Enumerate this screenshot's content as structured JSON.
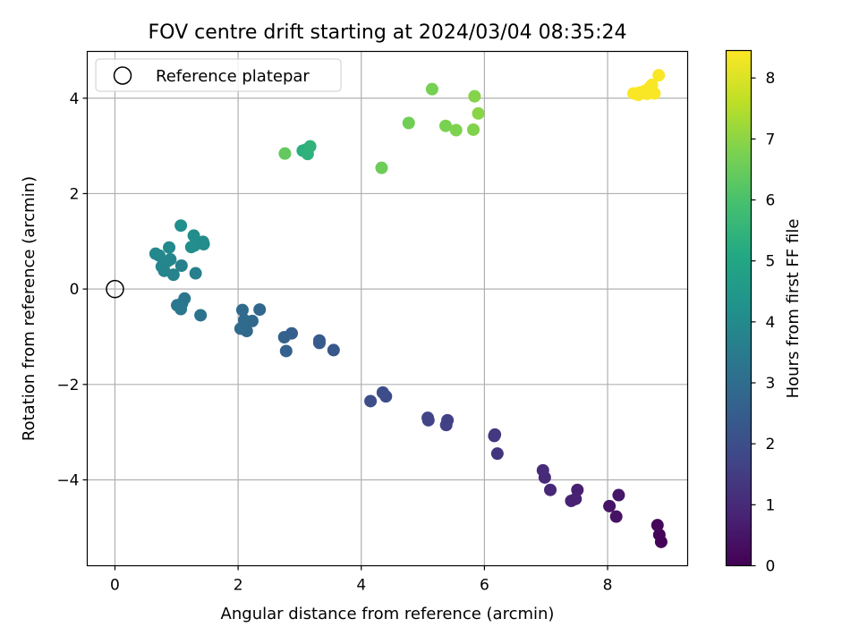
{
  "chart_data": {
    "type": "scatter",
    "title": "FOV centre drift starting at 2024/03/04 08:35:24",
    "xlabel": "Angular distance from reference (arcmin)",
    "ylabel": "Rotation from reference (arcmin)",
    "colorbar_label": "Hours from first FF file",
    "xlim": [
      -0.45,
      9.3
    ],
    "ylim": [
      -5.8,
      4.98
    ],
    "xticks": [
      0,
      2,
      4,
      6,
      8
    ],
    "yticks": [
      -4,
      -2,
      0,
      2,
      4
    ],
    "xtick_labels": [
      "0",
      "2",
      "4",
      "6",
      "8"
    ],
    "ytick_labels": [
      "−4",
      "−2",
      "0",
      "2",
      "4"
    ],
    "colorbar_range": [
      0,
      8.45
    ],
    "colorbar_ticks": [
      0,
      1,
      2,
      3,
      4,
      5,
      6,
      7,
      8
    ],
    "colorbar_tick_labels": [
      "0",
      "1",
      "2",
      "3",
      "4",
      "5",
      "6",
      "7",
      "8"
    ],
    "colormap": "viridis",
    "grid": true,
    "legend": {
      "placement": "top-left",
      "entries": [
        "Reference platepar"
      ]
    },
    "reference_point": {
      "name": "Reference platepar",
      "x": 0,
      "y": 0
    },
    "points": [
      {
        "x": 8.87,
        "y": -5.3,
        "t": 0.05
      },
      {
        "x": 8.84,
        "y": -5.15,
        "t": 0.1
      },
      {
        "x": 8.81,
        "y": -4.95,
        "t": 0.15
      },
      {
        "x": 8.14,
        "y": -4.77,
        "t": 0.4
      },
      {
        "x": 8.03,
        "y": -4.55,
        "t": 0.45
      },
      {
        "x": 8.18,
        "y": -4.32,
        "t": 0.5
      },
      {
        "x": 7.51,
        "y": -4.21,
        "t": 0.75
      },
      {
        "x": 7.48,
        "y": -4.4,
        "t": 0.8
      },
      {
        "x": 7.41,
        "y": -4.44,
        "t": 0.82
      },
      {
        "x": 7.07,
        "y": -4.21,
        "t": 0.95
      },
      {
        "x": 6.98,
        "y": -3.95,
        "t": 1.0
      },
      {
        "x": 6.95,
        "y": -3.8,
        "t": 1.05
      },
      {
        "x": 6.21,
        "y": -3.45,
        "t": 1.3
      },
      {
        "x": 6.17,
        "y": -3.05,
        "t": 1.35
      },
      {
        "x": 6.16,
        "y": -3.08,
        "t": 1.37
      },
      {
        "x": 5.4,
        "y": -2.75,
        "t": 1.6
      },
      {
        "x": 5.38,
        "y": -2.85,
        "t": 1.62
      },
      {
        "x": 5.09,
        "y": -2.75,
        "t": 1.7
      },
      {
        "x": 5.08,
        "y": -2.7,
        "t": 1.72
      },
      {
        "x": 4.4,
        "y": -2.25,
        "t": 1.95
      },
      {
        "x": 4.35,
        "y": -2.17,
        "t": 1.97
      },
      {
        "x": 4.15,
        "y": -2.35,
        "t": 2.0
      },
      {
        "x": 3.55,
        "y": -1.28,
        "t": 2.3
      },
      {
        "x": 3.32,
        "y": -1.08,
        "t": 2.4
      },
      {
        "x": 3.32,
        "y": -1.13,
        "t": 2.42
      },
      {
        "x": 2.87,
        "y": -0.93,
        "t": 2.55
      },
      {
        "x": 2.78,
        "y": -1.3,
        "t": 2.6
      },
      {
        "x": 2.75,
        "y": -1.01,
        "t": 2.62
      },
      {
        "x": 2.35,
        "y": -0.43,
        "t": 2.8
      },
      {
        "x": 2.23,
        "y": -0.67,
        "t": 2.85
      },
      {
        "x": 2.14,
        "y": -0.88,
        "t": 2.88
      },
      {
        "x": 2.1,
        "y": -0.65,
        "t": 2.9
      },
      {
        "x": 2.07,
        "y": -0.44,
        "t": 2.92
      },
      {
        "x": 2.04,
        "y": -0.83,
        "t": 2.95
      },
      {
        "x": 1.39,
        "y": -0.55,
        "t": 3.2
      },
      {
        "x": 1.13,
        "y": -0.2,
        "t": 3.3
      },
      {
        "x": 1.09,
        "y": -0.3,
        "t": 3.32
      },
      {
        "x": 1.07,
        "y": -0.42,
        "t": 3.35
      },
      {
        "x": 1.01,
        "y": -0.34,
        "t": 3.38
      },
      {
        "x": 1.31,
        "y": 0.33,
        "t": 3.6
      },
      {
        "x": 1.08,
        "y": 0.49,
        "t": 3.7
      },
      {
        "x": 0.95,
        "y": 0.3,
        "t": 3.75
      },
      {
        "x": 0.8,
        "y": 0.38,
        "t": 3.8
      },
      {
        "x": 0.76,
        "y": 0.47,
        "t": 3.82
      },
      {
        "x": 0.9,
        "y": 0.62,
        "t": 3.85
      },
      {
        "x": 0.85,
        "y": 0.58,
        "t": 3.88
      },
      {
        "x": 0.72,
        "y": 0.7,
        "t": 3.9
      },
      {
        "x": 0.66,
        "y": 0.74,
        "t": 3.92
      },
      {
        "x": 0.88,
        "y": 0.87,
        "t": 3.95
      },
      {
        "x": 1.44,
        "y": 0.94,
        "t": 4.05
      },
      {
        "x": 1.43,
        "y": 0.99,
        "t": 4.07
      },
      {
        "x": 1.29,
        "y": 0.91,
        "t": 4.1
      },
      {
        "x": 1.28,
        "y": 1.12,
        "t": 4.12
      },
      {
        "x": 1.24,
        "y": 0.88,
        "t": 4.15
      },
      {
        "x": 1.07,
        "y": 1.33,
        "t": 4.2
      },
      {
        "x": 2.76,
        "y": 2.84,
        "t": 6.4
      },
      {
        "x": 3.05,
        "y": 2.9,
        "t": 5.3
      },
      {
        "x": 3.1,
        "y": 2.92,
        "t": 5.35
      },
      {
        "x": 3.13,
        "y": 2.83,
        "t": 5.4
      },
      {
        "x": 3.17,
        "y": 2.99,
        "t": 5.45
      },
      {
        "x": 4.33,
        "y": 2.54,
        "t": 6.55
      },
      {
        "x": 4.77,
        "y": 3.48,
        "t": 6.6
      },
      {
        "x": 5.15,
        "y": 4.19,
        "t": 6.7
      },
      {
        "x": 5.37,
        "y": 3.42,
        "t": 6.75
      },
      {
        "x": 5.54,
        "y": 3.33,
        "t": 6.8
      },
      {
        "x": 5.82,
        "y": 3.34,
        "t": 6.85
      },
      {
        "x": 5.84,
        "y": 4.04,
        "t": 6.9
      },
      {
        "x": 5.9,
        "y": 3.68,
        "t": 6.95
      },
      {
        "x": 8.42,
        "y": 4.1,
        "t": 8.4
      },
      {
        "x": 8.5,
        "y": 4.07,
        "t": 8.4
      },
      {
        "x": 8.52,
        "y": 4.12,
        "t": 8.4
      },
      {
        "x": 8.6,
        "y": 4.15,
        "t": 8.4
      },
      {
        "x": 8.64,
        "y": 4.09,
        "t": 8.4
      },
      {
        "x": 8.68,
        "y": 4.22,
        "t": 8.4
      },
      {
        "x": 8.72,
        "y": 4.28,
        "t": 8.4
      },
      {
        "x": 8.76,
        "y": 4.1,
        "t": 8.4
      },
      {
        "x": 8.83,
        "y": 4.48,
        "t": 8.4
      }
    ]
  }
}
